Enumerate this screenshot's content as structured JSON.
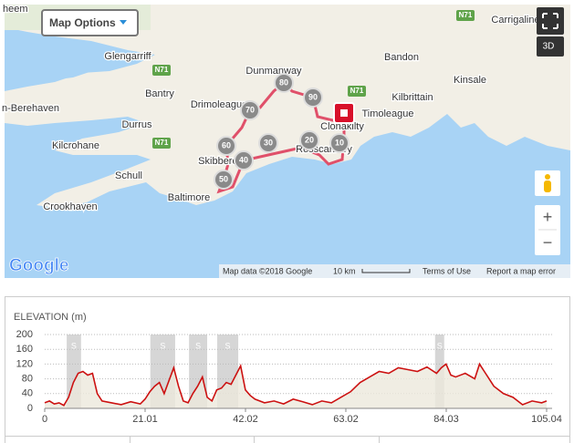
{
  "map": {
    "options_button": "Map Options",
    "button_3d": "3D",
    "zoom_in": "+",
    "zoom_out": "−",
    "logo": "Google",
    "attribution": "Map data ©2018 Google",
    "scale": "10 km",
    "terms": "Terms of Use",
    "report": "Report a map error",
    "places": [
      "heem",
      "Glengarriff",
      "Bantry",
      "Dunmanway",
      "Drimoleague",
      "Bandon",
      "Kinsale",
      "Carrigaline",
      "Kilbrittain",
      "Timoleague",
      "Clonakilty",
      "Rosscarbery",
      "Skibbereen",
      "Baltimore",
      "Schull",
      "Durrus",
      "Kilcrohane",
      "Crookhaven",
      "n-Berehaven"
    ],
    "roads": [
      "N71",
      "N71",
      "N71",
      "N71"
    ],
    "km_markers": [
      10,
      20,
      30,
      40,
      50,
      60,
      70,
      80,
      90
    ]
  },
  "elevation": {
    "type": "line",
    "title": "ELEVATION (m)",
    "color": "#cc1111",
    "fill": "#ece8dc",
    "xlim": [
      0,
      105.04
    ],
    "xticks": [
      0,
      21.01,
      42.02,
      63.02,
      84.03,
      105.04
    ],
    "ylim": [
      0,
      200
    ],
    "yticks": [
      0,
      40,
      80,
      120,
      160,
      200
    ],
    "grid": true,
    "segments": [
      {
        "start": 4.6,
        "end": 7.6,
        "label": "S"
      },
      {
        "start": 22.1,
        "end": 27.3,
        "label": "S"
      },
      {
        "start": 30.2,
        "end": 34.0,
        "label": "S"
      },
      {
        "start": 36.1,
        "end": 40.5,
        "label": "S"
      },
      {
        "start": 81.7,
        "end": 83.6,
        "label": "S"
      }
    ],
    "x": [
      0,
      1,
      2,
      3,
      4,
      5,
      6,
      7,
      8,
      9,
      10,
      11,
      12,
      14,
      16,
      18,
      20,
      21,
      22,
      23,
      24,
      25,
      26,
      27,
      28,
      29,
      30,
      31,
      32,
      33,
      34,
      35,
      36,
      37,
      38,
      39,
      40,
      41,
      42,
      43,
      44,
      46,
      48,
      50,
      52,
      54,
      56,
      58,
      60,
      62,
      64,
      66,
      68,
      70,
      72,
      74,
      76,
      78,
      80,
      82,
      83,
      84,
      85,
      86,
      88,
      90,
      91,
      92,
      93,
      94,
      96,
      98,
      100,
      102,
      104,
      105.04
    ],
    "values": [
      15,
      20,
      12,
      15,
      8,
      30,
      70,
      95,
      100,
      90,
      95,
      40,
      20,
      15,
      10,
      18,
      12,
      25,
      45,
      60,
      70,
      40,
      75,
      110,
      60,
      20,
      15,
      40,
      60,
      85,
      30,
      20,
      50,
      55,
      70,
      65,
      90,
      115,
      50,
      35,
      25,
      15,
      20,
      12,
      25,
      18,
      10,
      20,
      15,
      30,
      45,
      70,
      85,
      100,
      95,
      110,
      105,
      100,
      112,
      95,
      110,
      120,
      90,
      85,
      95,
      80,
      120,
      100,
      80,
      60,
      40,
      30,
      10,
      20,
      15,
      20
    ]
  }
}
